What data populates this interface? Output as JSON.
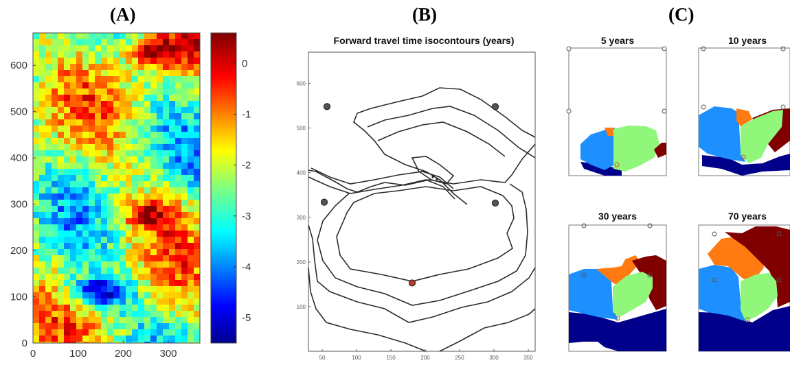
{
  "panels": {
    "a_label": "(A)",
    "b_label": "(B)",
    "c_label": "(C)"
  },
  "chart_data": [
    {
      "type": "heatmap",
      "panel": "(A)",
      "title": "",
      "xlabel": "",
      "ylabel": "",
      "xlim": [
        0,
        370
      ],
      "ylim": [
        0,
        670
      ],
      "x_ticks": [
        "0",
        "100",
        "200",
        "300"
      ],
      "y_ticks": [
        "0",
        "100",
        "200",
        "300",
        "400",
        "500",
        "600"
      ],
      "colorbar": {
        "range": [
          -5.5,
          0.6
        ],
        "ticks": [
          "0",
          "-1",
          "-2",
          "-3",
          "-4",
          "-5"
        ],
        "colormap": "jet"
      },
      "features": [
        {
          "desc": "low region",
          "x": 150,
          "y": 110,
          "value": -5.0
        },
        {
          "desc": "high region",
          "x": 260,
          "y": 280,
          "value": -0.2
        },
        {
          "desc": "high region",
          "x": 280,
          "y": 630,
          "value": 0.3
        }
      ]
    },
    {
      "type": "line",
      "panel": "(B)",
      "title": "Forward travel time isocontours (years)",
      "xlabel": "",
      "ylabel": "",
      "xlim": [
        30,
        360
      ],
      "ylim": [
        0,
        670
      ],
      "x_ticks": [
        "50",
        "100",
        "150",
        "200",
        "250",
        "300",
        "350"
      ],
      "y_ticks": [
        "100",
        "200",
        "300",
        "400",
        "500",
        "600"
      ],
      "wells": [
        {
          "x": 57,
          "y": 548,
          "color": "#555555"
        },
        {
          "x": 302,
          "y": 548,
          "color": "#555555"
        },
        {
          "x": 53,
          "y": 334,
          "color": "#555555"
        },
        {
          "x": 302,
          "y": 332,
          "color": "#555555"
        },
        {
          "x": 181,
          "y": 153,
          "color": "#c0392b"
        }
      ]
    },
    {
      "type": "heatmap",
      "panel": "(C)",
      "subplots": [
        {
          "title": "5 years"
        },
        {
          "title": "10 years"
        },
        {
          "title": "30 years"
        },
        {
          "title": "70 years"
        }
      ],
      "colors": {
        "dark_blue": "#00008b",
        "light_blue": "#1e8fff",
        "green": "#90f77a",
        "orange": "#ff7a10",
        "dark_red": "#800000"
      }
    }
  ]
}
